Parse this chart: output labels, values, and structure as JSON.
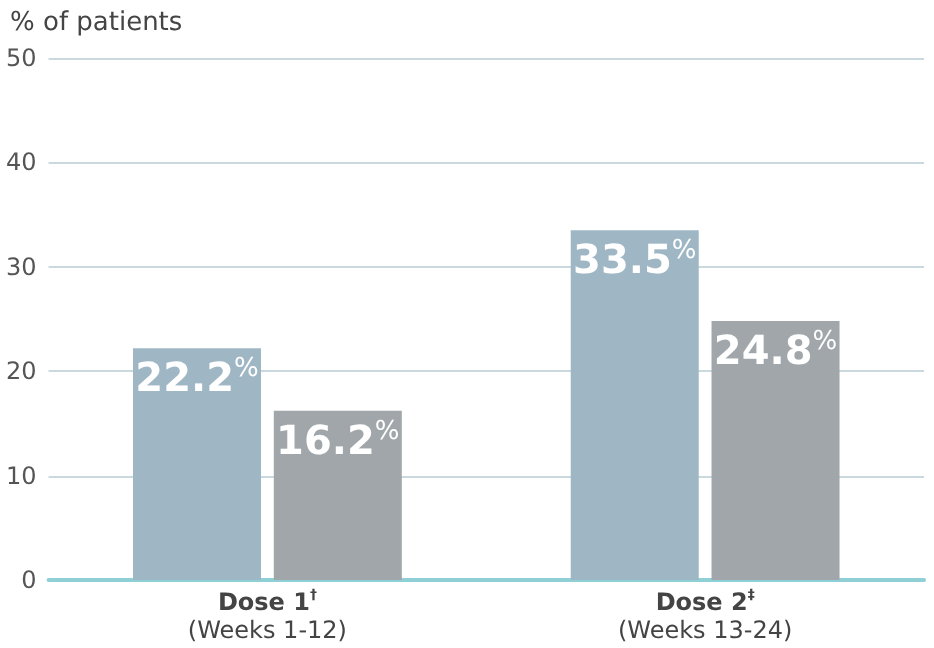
{
  "chart_data": {
    "type": "bar",
    "ylabel": "% of patients",
    "categories": [
      "Dose 1$^{†}$\n(Weeks 1-12)",
      "Dose 2$^{‡}$\n(Weeks 13-24)"
    ],
    "series": [
      {
        "color": "#9fb7c4",
        "values": [
          22.2,
          33.5
        ],
        "value_labels": [
          "22.2%",
          "33.5%"
        ]
      },
      {
        "color": "#a0a6a9",
        "values": [
          16.2,
          24.8
        ],
        "value_labels": [
          "16.2%",
          "24.8%"
        ]
      }
    ],
    "ylim": [
      0,
      50
    ],
    "yticks": [
      0,
      10,
      20,
      30,
      40,
      50
    ],
    "grid": "y"
  }
}
